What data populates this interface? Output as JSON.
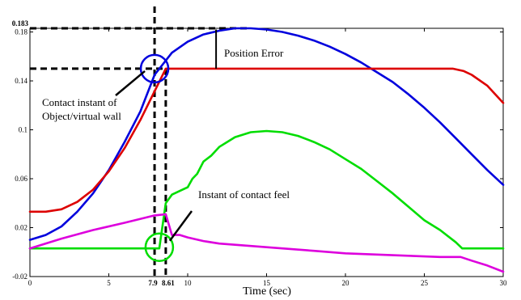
{
  "chart_data": {
    "type": "line",
    "xlabel": "Time (sec)",
    "ylabel": "",
    "xlim": [
      0,
      30
    ],
    "ylim": [
      -0.02,
      0.183
    ],
    "grid": false,
    "x_ticks": [
      "0",
      "5",
      "10",
      "15",
      "20",
      "25",
      "30"
    ],
    "y_ticks": [
      "-0.02",
      "0.02",
      "0.06",
      "0.1",
      "0.14",
      "0.18"
    ],
    "special_x_labels": [
      "7.9",
      "8.61"
    ],
    "special_y_label": "0.183",
    "reference_lines": {
      "x": [
        7.9,
        8.61
      ],
      "y": [
        0.183,
        0.15
      ]
    },
    "series": [
      {
        "color": "#0000dd",
        "x": [
          0,
          1,
          2,
          3,
          4,
          5,
          6,
          7,
          7.9,
          9,
          10,
          11,
          12,
          13,
          14,
          15,
          16,
          17,
          18,
          19,
          20,
          21,
          22,
          23,
          24,
          25,
          26,
          27,
          28,
          29,
          30
        ],
        "y": [
          0.01,
          0.014,
          0.021,
          0.033,
          0.048,
          0.067,
          0.09,
          0.115,
          0.145,
          0.163,
          0.172,
          0.178,
          0.181,
          0.183,
          0.183,
          0.182,
          0.18,
          0.177,
          0.173,
          0.168,
          0.162,
          0.155,
          0.147,
          0.139,
          0.129,
          0.118,
          0.106,
          0.093,
          0.08,
          0.067,
          0.055
        ]
      },
      {
        "color": "#dd0000",
        "x": [
          0,
          1,
          2,
          3,
          4,
          5,
          6,
          7,
          8.61,
          10,
          12,
          15,
          20,
          25,
          26.8,
          27.5,
          28,
          29,
          30
        ],
        "y": [
          0.033,
          0.033,
          0.035,
          0.041,
          0.051,
          0.066,
          0.085,
          0.108,
          0.15,
          0.15,
          0.15,
          0.15,
          0.15,
          0.15,
          0.15,
          0.148,
          0.145,
          0.136,
          0.122
        ]
      },
      {
        "color": "#00dd00",
        "x": [
          0,
          5,
          8.2,
          8.61,
          9,
          9.5,
          10,
          10.3,
          10.6,
          11,
          11.5,
          12,
          12.5,
          13,
          14,
          15,
          16,
          17,
          18,
          19,
          20,
          21,
          22,
          23,
          24,
          25,
          26,
          27,
          27.4,
          28,
          30
        ],
        "y": [
          0.003,
          0.003,
          0.003,
          0.04,
          0.047,
          0.05,
          0.053,
          0.06,
          0.064,
          0.074,
          0.079,
          0.086,
          0.09,
          0.094,
          0.098,
          0.099,
          0.098,
          0.095,
          0.09,
          0.084,
          0.076,
          0.068,
          0.058,
          0.048,
          0.037,
          0.026,
          0.018,
          0.008,
          0.003,
          0.003,
          0.003
        ]
      },
      {
        "color": "#dd00dd",
        "x": [
          0,
          2,
          4,
          6,
          7.9,
          8.61,
          9,
          9.5,
          10,
          11,
          12,
          14,
          16,
          18,
          20,
          22,
          24,
          26,
          27.3,
          28,
          29,
          30
        ],
        "y": [
          0.003,
          0.011,
          0.018,
          0.024,
          0.03,
          0.031,
          0.014,
          0.014,
          0.012,
          0.009,
          0.007,
          0.005,
          0.003,
          0.001,
          -0.001,
          -0.002,
          -0.003,
          -0.004,
          -0.004,
          -0.007,
          -0.011,
          -0.016
        ]
      }
    ],
    "annotations": [
      {
        "text": "Position Error"
      },
      {
        "text": "Contact instant of"
      },
      {
        "text": "Object/virtual wall"
      },
      {
        "text": "Instant of contact feel"
      }
    ]
  }
}
